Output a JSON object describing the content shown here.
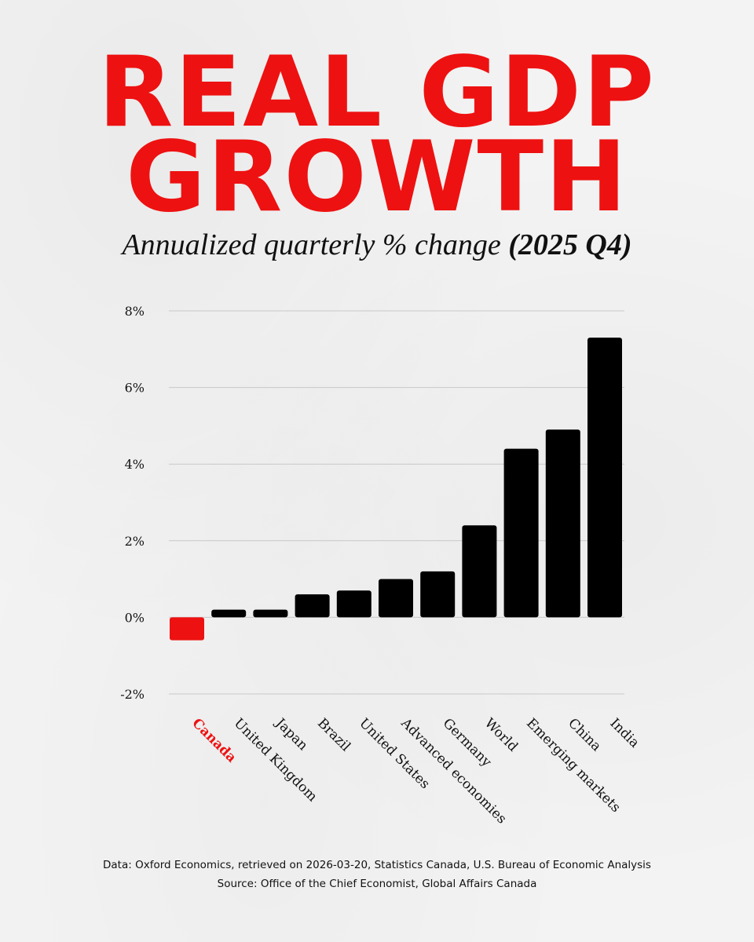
{
  "title_line1": "REAL GDP",
  "title_line2": "GROWTH",
  "subtitle": "Annualized quarterly % change",
  "subtitle_period": "(2025 Q4)",
  "colors": {
    "title": "#ee1111",
    "highlight": "#ee1111",
    "bar": "#000000",
    "grid": "#c8c8c8",
    "text": "#111111"
  },
  "chart_data": {
    "type": "bar",
    "categories": [
      "Canada",
      "United Kingdom",
      "Japan",
      "Brazil",
      "United States",
      "Advanced economies",
      "Germany",
      "World",
      "Emerging markets",
      "China",
      "India"
    ],
    "values": [
      -0.6,
      0.2,
      0.2,
      0.6,
      0.7,
      1.0,
      1.2,
      2.4,
      4.4,
      4.9,
      7.3
    ],
    "highlight": "Canada",
    "title": "REAL GDP GROWTH",
    "ylabel": "",
    "xlabel": "",
    "ylim": [
      -2,
      8
    ],
    "yticks": [
      -2,
      0,
      2,
      4,
      6,
      8
    ],
    "ytick_labels": [
      "-2%",
      "0%",
      "2%",
      "4%",
      "6%",
      "8%"
    ],
    "grid": true
  },
  "footer": {
    "data_line": "Data: Oxford Economics, retrieved on 2026-03-20, Statistics Canada, U.S. Bureau of Economic Analysis",
    "source_line": "Source: Office of the Chief Economist, Global Affairs Canada"
  }
}
